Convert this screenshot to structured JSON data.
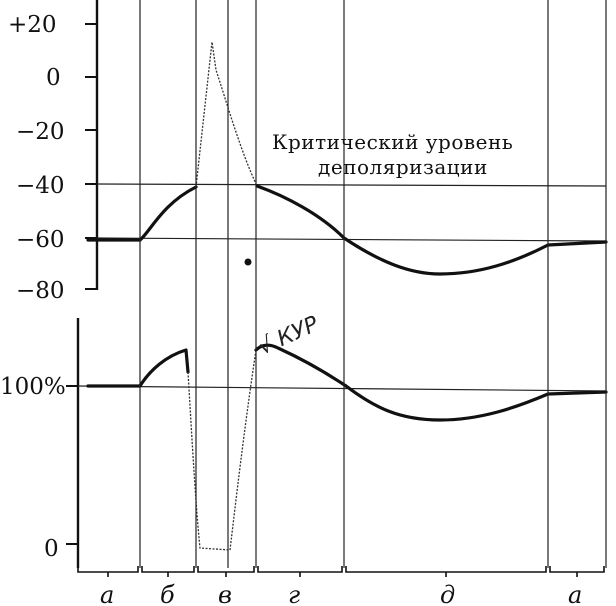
{
  "top_axis": {
    "ticks": [
      "+20",
      "0",
      "−20",
      "−40",
      "−60",
      "−80"
    ]
  },
  "bottom_axis": {
    "ticks": [
      "100%",
      "0"
    ]
  },
  "annotation": {
    "line1": "Критический уровень",
    "line2": "деполяризации"
  },
  "handwritten_note": "√ КУР",
  "phases": [
    "а",
    "б",
    "в",
    "г",
    "д",
    "а"
  ],
  "colors": {
    "ink": "#111111",
    "paper": "#ffffff"
  }
}
